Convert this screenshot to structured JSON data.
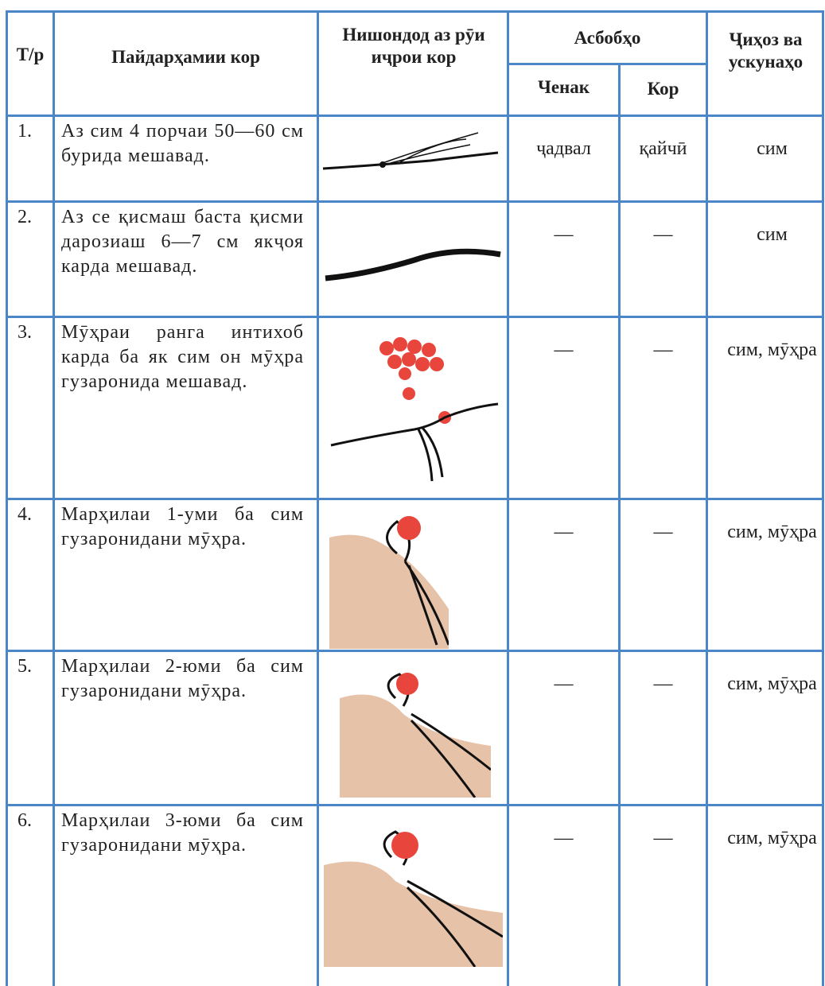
{
  "header": {
    "num": "Т/р",
    "step": "Пайдарҳамии кор",
    "result": "Нишондод аз рӯи иҷрои кор",
    "tools": "Асбобҳо",
    "measure": "Ченак",
    "work": "Кор",
    "equipment": "Ҷиҳоз ва ускунаҳо"
  },
  "rows": [
    {
      "num": "1.",
      "step": "Аз сим 4 порчаи 50—60 см бурида мешавад.",
      "measure": "ҷадвал",
      "work": "қайчӣ",
      "equipment": "сим"
    },
    {
      "num": "2.",
      "step": "Аз се қисмаш баста қисми дарозиаш 6—7 см якҷоя карда мешавад.",
      "measure": "—",
      "work": "—",
      "equipment": "сим"
    },
    {
      "num": "3.",
      "step": "Мӯҳраи ранга интихоб карда ба як сим он мӯҳра гузаронида мешавад.",
      "measure": "—",
      "work": "—",
      "equipment": "сим, мӯҳра"
    },
    {
      "num": "4.",
      "step": "Марҳилаи 1-уми ба сим гузаронидани мӯҳра.",
      "measure": "—",
      "work": "—",
      "equipment": "сим, мӯҳра"
    },
    {
      "num": "5.",
      "step": "Марҳилаи 2-юми ба сим гузаронидани мӯҳра.",
      "measure": "—",
      "work": "—",
      "equipment": "сим, мӯҳра"
    },
    {
      "num": "6.",
      "step": "Марҳилаи 3-юми ба сим гузаронидани мӯҳра.",
      "measure": "—",
      "work": "—",
      "equipment": "сим, мӯҳра"
    }
  ]
}
